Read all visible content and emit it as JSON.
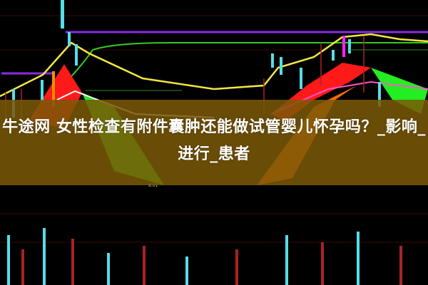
{
  "headline": "牛途网 女性检查有附件囊肿还能做试管婴儿怀孕吗？_影响_进行_患者",
  "chart_labels": {
    "price_marker": "8.01"
  },
  "colors": {
    "band": "#7a5806",
    "background": "#000000",
    "yellow_line": "#f2e640",
    "green_line": "#33cc22",
    "purple_line": "#8a2be2",
    "red_area": "#ff1a1a",
    "green_area": "#22ee22",
    "candle_cyan": "#55dde8"
  }
}
